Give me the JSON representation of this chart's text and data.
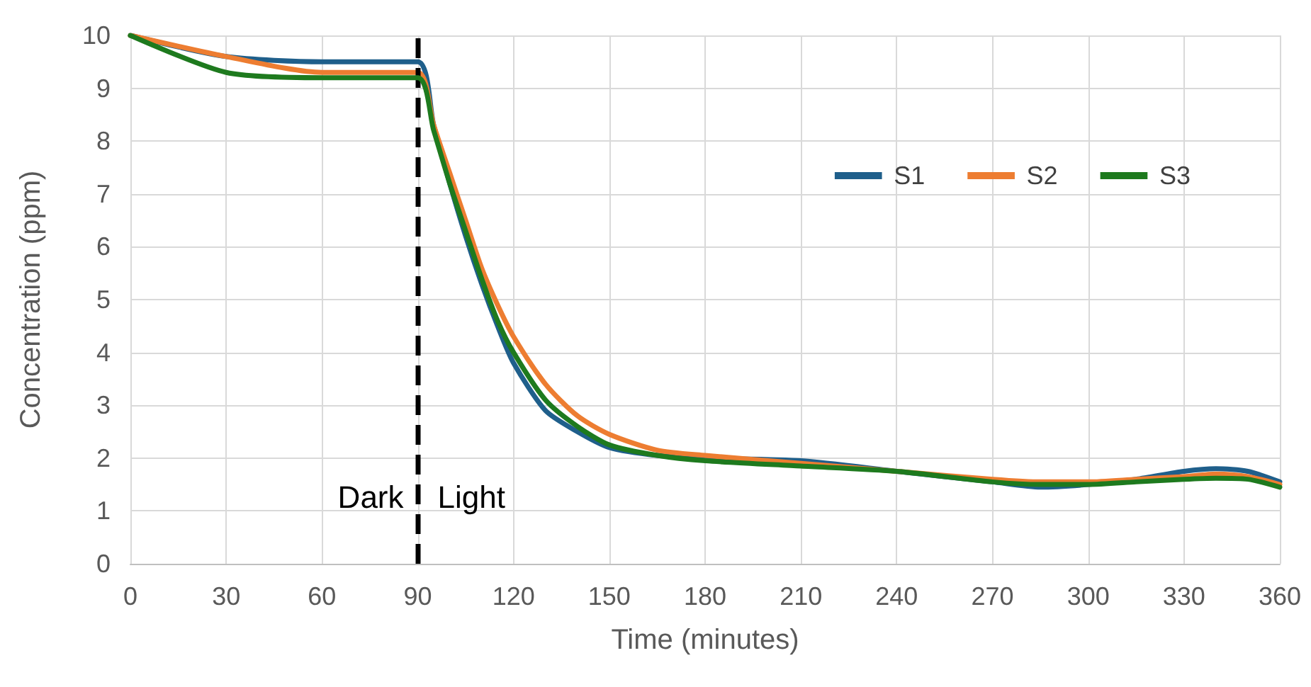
{
  "chart_data": {
    "type": "line",
    "xlabel": "Time (minutes)",
    "ylabel": "Concentration (ppm)",
    "xlim": [
      0,
      360
    ],
    "xticks": [
      0,
      30,
      60,
      90,
      120,
      150,
      180,
      210,
      240,
      270,
      300,
      330,
      360
    ],
    "ylim": [
      0,
      10
    ],
    "yticks": [
      0,
      1,
      2,
      3,
      4,
      5,
      6,
      7,
      8,
      9,
      10
    ],
    "grid": true,
    "legend": "top right",
    "marker": "none",
    "line_style": "solid",
    "x": [
      0,
      30,
      60,
      90,
      95,
      100,
      105,
      110,
      115,
      120,
      130,
      140,
      150,
      165,
      180,
      210,
      240,
      270,
      285,
      300,
      315,
      330,
      340,
      350,
      360
    ],
    "series": [
      {
        "name": "S1",
        "color": "#1f5f8b",
        "values": [
          10,
          9.6,
          9.5,
          9.5,
          8.3,
          7.2,
          6.2,
          5.3,
          4.5,
          3.8,
          2.9,
          2.5,
          2.2,
          2.05,
          2.0,
          1.95,
          1.75,
          1.55,
          1.45,
          1.5,
          1.6,
          1.75,
          1.8,
          1.75,
          1.55
        ]
      },
      {
        "name": "S2",
        "color": "#ed7d31",
        "values": [
          10,
          9.6,
          9.3,
          9.3,
          8.3,
          7.4,
          6.5,
          5.6,
          4.9,
          4.3,
          3.4,
          2.8,
          2.45,
          2.15,
          2.05,
          1.9,
          1.75,
          1.6,
          1.55,
          1.55,
          1.6,
          1.65,
          1.7,
          1.65,
          1.5
        ]
      },
      {
        "name": "S3",
        "color": "#1e7a1e",
        "values": [
          10,
          9.3,
          9.2,
          9.2,
          8.2,
          7.2,
          6.3,
          5.4,
          4.6,
          4.0,
          3.1,
          2.6,
          2.25,
          2.05,
          1.95,
          1.85,
          1.75,
          1.55,
          1.5,
          1.5,
          1.55,
          1.6,
          1.62,
          1.6,
          1.45
        ]
      }
    ],
    "ref_lines": [
      {
        "axis": "x",
        "value": 90,
        "color": "#000000",
        "line_style": "dashed"
      }
    ],
    "annotations": [
      "Dark",
      "Light"
    ]
  }
}
